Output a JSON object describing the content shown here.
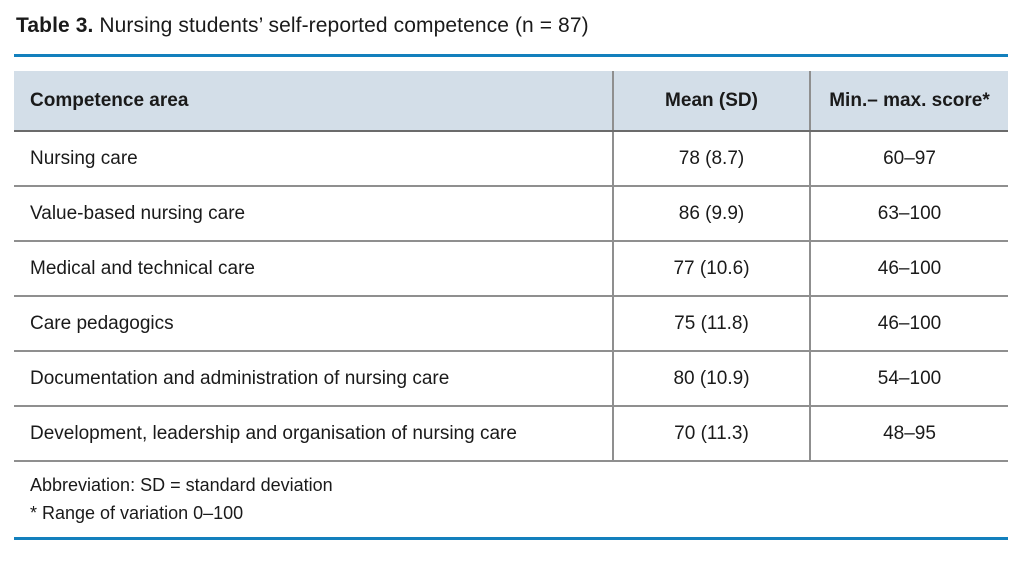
{
  "caption": {
    "label": "Table 3.",
    "text": " Nursing students’ self-reported competence (n = 87)"
  },
  "colors": {
    "accent": "#1380bd",
    "header_bg": "#d3dee8",
    "divider_gray": "#8f8f8f"
  },
  "table": {
    "columns": [
      "Competence area",
      "Mean (SD)",
      "Min.– max. score*"
    ],
    "rows": [
      {
        "area": "Nursing care",
        "mean": "78 (8.7)",
        "range": "60–97"
      },
      {
        "area": "Value-based nursing care",
        "mean": "86 (9.9)",
        "range": "63–100"
      },
      {
        "area": "Medical and technical care",
        "mean": "77 (10.6)",
        "range": "46–100"
      },
      {
        "area": "Care pedagogics",
        "mean": "75 (11.8)",
        "range": "46–100"
      },
      {
        "area": "Documentation and administration of nursing care",
        "mean": "80 (10.9)",
        "range": "54–100"
      },
      {
        "area": "Development, leadership and organisation of nursing care",
        "mean": "70 (11.3)",
        "range": "48–95"
      }
    ]
  },
  "footnotes": [
    "Abbreviation: SD = standard deviation",
    "* Range of variation 0–100"
  ]
}
